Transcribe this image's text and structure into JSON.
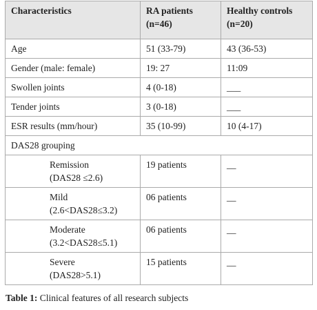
{
  "table": {
    "header": [
      "Characteristics",
      "RA patients (n=46)",
      "Healthy controls (n=20)"
    ],
    "rows": [
      [
        "Age",
        "51 (33-79)",
        "43 (36-53)"
      ],
      [
        "Gender (male: female)",
        "19: 27",
        "11:09"
      ],
      [
        "Swollen joints",
        "4 (0-18)",
        "___"
      ],
      [
        "Tender joints",
        "3 (0-18)",
        "___"
      ],
      [
        "ESR results (mm/hour)",
        "35 (10-99)",
        "10 (4-17)"
      ],
      [
        "DAS28 grouping"
      ],
      [
        [
          "Remission",
          "(DAS28 ≤2.6)"
        ],
        "19 patients",
        "__"
      ],
      [
        [
          "Mild",
          "(2.6<DAS28≤3.2)"
        ],
        "06 patients",
        "__"
      ],
      [
        [
          "Moderate",
          "(3.2<DAS28≤5.1)"
        ],
        "06 patients",
        "__"
      ],
      [
        [
          "Severe",
          "(DAS28>5.1)"
        ],
        "15 patients",
        "__"
      ]
    ]
  },
  "caption": {
    "label": "Table 1:",
    "text": "Clinical features of all research subjects"
  }
}
